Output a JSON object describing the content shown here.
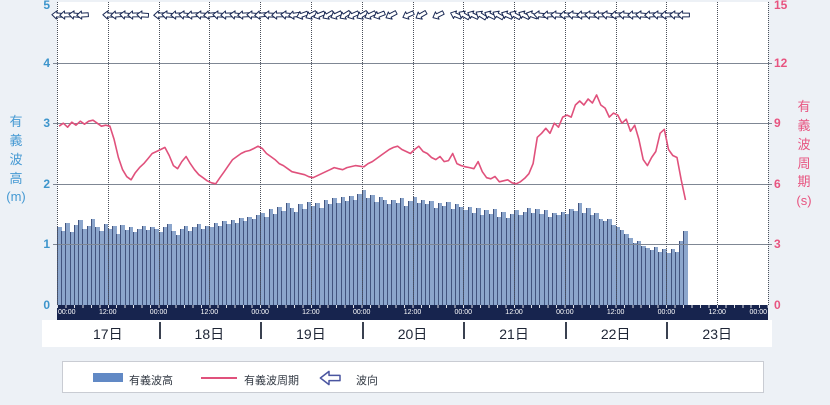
{
  "colors": {
    "page_background": "#edf1f6",
    "plot_background": "#ffffff",
    "bar_fill": "#8ca6cc",
    "bar_edge": "#42547e",
    "period_line": "#e0517c",
    "left_axis_text": "#3d95cc",
    "right_axis_text": "#e85480",
    "time_band": "#17244e",
    "arrow_outline": "#1b2a55",
    "grid_line": "#7f8794",
    "day_label_text": "#1e2535"
  },
  "left_axis": {
    "title": "有義波高",
    "unit": "(m)",
    "ticks": [
      0,
      1,
      2,
      3,
      4,
      5
    ]
  },
  "right_axis": {
    "title": "有義波周期",
    "unit": "(s)",
    "ticks": [
      0,
      3,
      6,
      9,
      12,
      15
    ]
  },
  "x_axis": {
    "days": [
      "17日",
      "18日",
      "19日",
      "20日",
      "21日",
      "22日",
      "23日"
    ],
    "time_label_00": "00:00",
    "time_label_12": "12:00",
    "half_day_divisions": 14
  },
  "legend": {
    "items": [
      {
        "label": "有義波高",
        "type": "bar"
      },
      {
        "label": "有義波周期",
        "type": "line"
      },
      {
        "label": "波向",
        "type": "arrow"
      }
    ]
  },
  "chart_data": {
    "type": [
      "bar",
      "line"
    ],
    "title": "",
    "x_unit": "hours_from_17日00:00",
    "x_range_labels": [
      "17日 00:00",
      "23日 05:00"
    ],
    "left_ylim": [
      0,
      5
    ],
    "right_ylim": [
      0,
      15
    ],
    "grid": "on",
    "legend_position": "bottom",
    "series": [
      {
        "name": "有義波高",
        "type": "bar",
        "axis": "left",
        "unit": "m",
        "values": [
          1.28,
          1.22,
          1.35,
          1.2,
          1.32,
          1.4,
          1.25,
          1.3,
          1.42,
          1.28,
          1.22,
          1.34,
          1.26,
          1.3,
          1.18,
          1.32,
          1.24,
          1.28,
          1.2,
          1.26,
          1.31,
          1.23,
          1.28,
          1.25,
          1.2,
          1.28,
          1.33,
          1.22,
          1.16,
          1.26,
          1.3,
          1.22,
          1.28,
          1.33,
          1.26,
          1.31,
          1.28,
          1.36,
          1.3,
          1.38,
          1.33,
          1.4,
          1.36,
          1.43,
          1.38,
          1.46,
          1.42,
          1.48,
          1.52,
          1.45,
          1.58,
          1.5,
          1.62,
          1.55,
          1.68,
          1.6,
          1.53,
          1.66,
          1.58,
          1.7,
          1.63,
          1.68,
          1.6,
          1.73,
          1.66,
          1.76,
          1.68,
          1.78,
          1.72,
          1.8,
          1.74,
          1.83,
          1.9,
          1.76,
          1.82,
          1.7,
          1.78,
          1.73,
          1.66,
          1.74,
          1.68,
          1.76,
          1.63,
          1.72,
          1.78,
          1.68,
          1.74,
          1.66,
          1.72,
          1.6,
          1.68,
          1.64,
          1.7,
          1.58,
          1.66,
          1.62,
          1.56,
          1.62,
          1.52,
          1.6,
          1.48,
          1.56,
          1.5,
          1.58,
          1.46,
          1.53,
          1.43,
          1.5,
          1.56,
          1.48,
          1.54,
          1.6,
          1.52,
          1.58,
          1.5,
          1.56,
          1.46,
          1.52,
          1.48,
          1.54,
          1.5,
          1.58,
          1.55,
          1.68,
          1.52,
          1.6,
          1.48,
          1.52,
          1.42,
          1.38,
          1.42,
          1.32,
          1.28,
          1.24,
          1.18,
          1.1,
          1.02,
          1.06,
          0.98,
          0.94,
          0.9,
          0.95,
          0.88,
          0.92,
          0.86,
          0.92,
          0.88,
          1.05,
          1.22
        ]
      },
      {
        "name": "有義波周期",
        "type": "line",
        "axis": "right",
        "unit": "s",
        "values": [
          8.85,
          9.0,
          8.8,
          9.05,
          8.9,
          9.1,
          8.95,
          9.1,
          9.15,
          9.0,
          8.85,
          8.9,
          8.85,
          8.2,
          7.3,
          6.7,
          6.35,
          6.2,
          6.55,
          6.8,
          7.0,
          7.25,
          7.5,
          7.6,
          7.7,
          7.8,
          7.4,
          6.9,
          6.75,
          7.1,
          7.35,
          7.0,
          6.7,
          6.45,
          6.3,
          6.15,
          6.05,
          6.0,
          6.3,
          6.6,
          6.9,
          7.2,
          7.35,
          7.5,
          7.6,
          7.65,
          7.75,
          7.86,
          7.75,
          7.5,
          7.35,
          7.2,
          7.0,
          6.9,
          6.75,
          6.6,
          6.55,
          6.5,
          6.45,
          6.35,
          6.3,
          6.4,
          6.5,
          6.6,
          6.7,
          6.8,
          6.75,
          6.7,
          6.8,
          6.85,
          6.9,
          6.87,
          6.84,
          7.0,
          7.1,
          7.25,
          7.4,
          7.55,
          7.7,
          7.8,
          7.86,
          7.7,
          7.6,
          7.5,
          7.7,
          7.86,
          7.6,
          7.5,
          7.3,
          7.2,
          7.35,
          7.1,
          7.15,
          7.5,
          7.0,
          6.9,
          6.84,
          6.8,
          6.75,
          7.1,
          6.6,
          6.3,
          6.25,
          6.36,
          6.1,
          6.15,
          6.2,
          6.05,
          6.0,
          6.1,
          6.27,
          6.5,
          7.0,
          8.3,
          8.5,
          8.75,
          8.5,
          9.0,
          8.8,
          9.3,
          9.4,
          9.3,
          9.9,
          10.1,
          9.9,
          10.2,
          10.0,
          10.4,
          9.9,
          9.75,
          9.3,
          9.5,
          9.4,
          9.0,
          9.2,
          8.6,
          8.9,
          8.2,
          7.2,
          6.9,
          7.3,
          7.6,
          8.5,
          8.7,
          7.7,
          7.4,
          7.3,
          6.2,
          5.2
        ]
      },
      {
        "name": "波向",
        "type": "direction-arrows",
        "arrows": [
          [
            0,
            4
          ],
          [
            2,
            -2
          ],
          [
            4,
            6
          ],
          [
            6,
            -3
          ],
          [
            12,
            3
          ],
          [
            14,
            -4
          ],
          [
            16,
            5
          ],
          [
            18,
            -2
          ],
          [
            20,
            4
          ],
          [
            24,
            -3
          ],
          [
            26,
            5
          ],
          [
            28,
            -2
          ],
          [
            30,
            6
          ],
          [
            32,
            -4
          ],
          [
            34,
            3
          ],
          [
            36,
            -5
          ],
          [
            38,
            4
          ],
          [
            40,
            -2
          ],
          [
            42,
            6
          ],
          [
            44,
            -3
          ],
          [
            46,
            4
          ],
          [
            48,
            -5
          ],
          [
            50,
            3
          ],
          [
            52,
            -2
          ],
          [
            54,
            5
          ],
          [
            56,
            -8
          ],
          [
            58,
            -20
          ],
          [
            60,
            -28
          ],
          [
            62,
            -22
          ],
          [
            64,
            -30
          ],
          [
            66,
            -25
          ],
          [
            68,
            -32
          ],
          [
            70,
            -24
          ],
          [
            72,
            -30
          ],
          [
            74,
            -26
          ],
          [
            76,
            -22
          ],
          [
            79,
            -28
          ],
          [
            83,
            -24
          ],
          [
            86,
            -30
          ],
          [
            90,
            -26
          ],
          [
            94,
            22
          ],
          [
            96,
            30
          ],
          [
            98,
            25
          ],
          [
            100,
            32
          ],
          [
            102,
            26
          ],
          [
            104,
            30
          ],
          [
            106,
            24
          ],
          [
            108,
            28
          ],
          [
            110,
            26
          ],
          [
            112,
            20
          ],
          [
            114,
            6
          ],
          [
            116,
            -3
          ],
          [
            118,
            4
          ],
          [
            120,
            -2
          ],
          [
            122,
            5
          ],
          [
            124,
            -3
          ],
          [
            126,
            4
          ],
          [
            128,
            -2
          ],
          [
            130,
            6
          ],
          [
            132,
            -3
          ],
          [
            134,
            4
          ],
          [
            136,
            -2
          ],
          [
            138,
            5
          ],
          [
            140,
            -3
          ],
          [
            142,
            4
          ],
          [
            144,
            -2
          ],
          [
            146,
            3
          ],
          [
            148,
            0
          ]
        ]
      }
    ]
  }
}
